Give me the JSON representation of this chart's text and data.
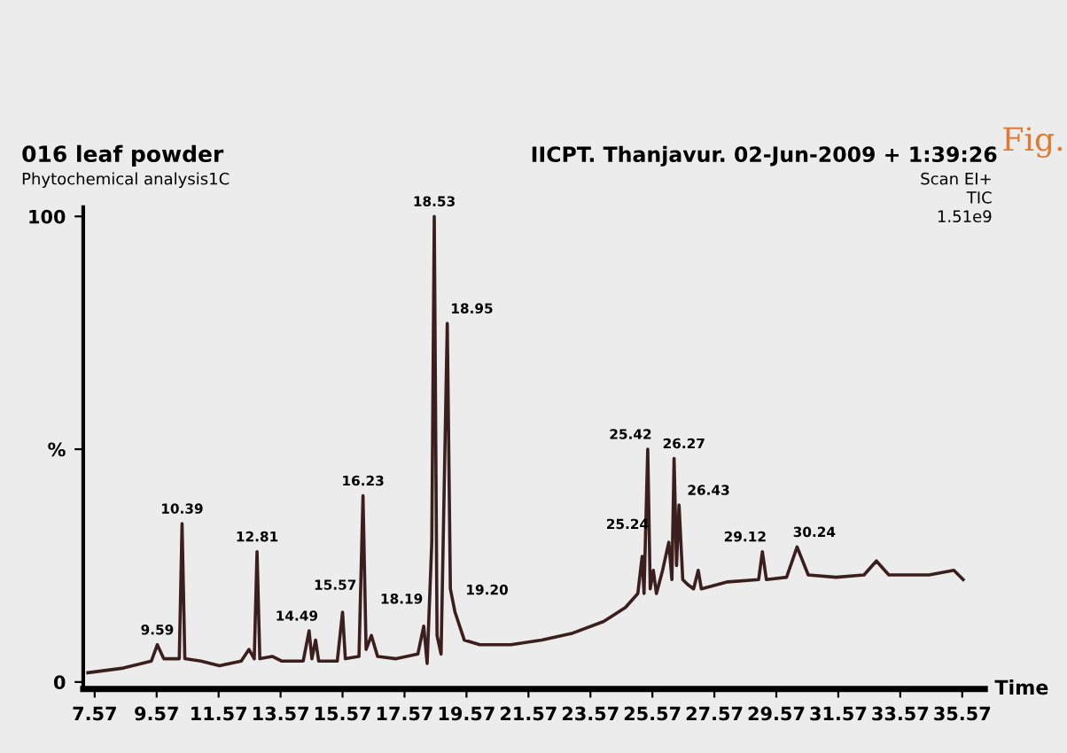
{
  "chart_data": {
    "type": "line",
    "title": "016 leaf powder",
    "subtitle": "Phytochemical analysis1C",
    "xlabel": "Time",
    "xlim": [
      7.2,
      36.3
    ],
    "ylim": [
      -1.5,
      102
    ],
    "xticks": [
      7.57,
      9.57,
      11.57,
      13.57,
      15.57,
      17.57,
      19.57,
      21.57,
      23.57,
      25.57,
      27.57,
      29.57,
      31.57,
      33.57,
      35.57
    ],
    "yticks": [
      0,
      {
        "value": 50,
        "label": "%"
      },
      100
    ],
    "grid": false,
    "legend": false,
    "marker": "none",
    "line_style": "solid",
    "series": [
      {
        "color": "#3b1e1e",
        "x": [
          7.35,
          8.5,
          9.4,
          9.59,
          9.8,
          10.3,
          10.39,
          10.48,
          11.0,
          11.6,
          12.3,
          12.55,
          12.72,
          12.81,
          12.9,
          13.3,
          13.6,
          14.3,
          14.49,
          14.58,
          14.7,
          14.8,
          15.4,
          15.57,
          15.66,
          16.1,
          16.23,
          16.33,
          16.5,
          16.7,
          17.3,
          18.0,
          18.19,
          18.3,
          18.45,
          18.53,
          18.62,
          18.75,
          18.95,
          19.05,
          19.2,
          19.5,
          20.0,
          21.0,
          22.0,
          23.0,
          24.0,
          24.7,
          25.1,
          25.24,
          25.3,
          25.42,
          25.5,
          25.6,
          25.7,
          25.9,
          26.1,
          26.2,
          26.27,
          26.35,
          26.43,
          26.55,
          26.7,
          26.9,
          27.05,
          27.15,
          28.0,
          29.0,
          29.12,
          29.25,
          29.9,
          30.24,
          30.6,
          31.5,
          32.4,
          32.8,
          33.2,
          34.5,
          35.3,
          35.6
        ],
        "values": [
          2,
          3,
          4.5,
          8,
          5,
          5,
          34,
          5,
          4.5,
          3.5,
          4.5,
          7,
          5,
          28,
          5,
          5.5,
          4.5,
          4.5,
          11,
          5,
          9,
          4.5,
          4.5,
          15,
          5,
          5.5,
          40,
          7,
          10,
          5.5,
          5,
          6,
          12,
          4,
          30,
          100,
          10,
          6,
          77,
          20,
          15,
          9,
          8,
          8,
          9,
          10.5,
          13,
          16,
          19,
          27,
          19,
          50,
          20,
          24,
          19,
          24,
          30,
          22,
          48,
          25,
          38,
          22,
          21,
          20,
          24,
          20,
          21.5,
          22,
          28,
          22,
          22.5,
          29,
          23,
          22.5,
          23,
          26,
          23,
          23,
          24,
          22
        ]
      }
    ],
    "annotations": [
      "IICPT. Thanjavur. 02-Jun-2009 + 1:39:26",
      "Scan EI+",
      "TIC",
      "1.51e9",
      "Fig.",
      {
        "text": "9.59",
        "x": 9.59,
        "y": 8
      },
      {
        "text": "10.39",
        "x": 10.39,
        "y": 34
      },
      {
        "text": "12.81",
        "x": 12.81,
        "y": 28
      },
      {
        "text": "14.49",
        "x": 14.49,
        "y": 11
      },
      {
        "text": "15.57",
        "x": 15.57,
        "y": 15
      },
      {
        "text": "16.23",
        "x": 16.23,
        "y": 40
      },
      {
        "text": "18.19",
        "x": 18.19,
        "y": 12
      },
      {
        "text": "18.53",
        "x": 18.53,
        "y": 100
      },
      {
        "text": "18.95",
        "x": 18.95,
        "y": 77
      },
      {
        "text": "19.20",
        "x": 19.2,
        "y": 15
      },
      {
        "text": "25.24",
        "x": 25.24,
        "y": 27
      },
      {
        "text": "25.42",
        "x": 25.42,
        "y": 50
      },
      {
        "text": "26.27",
        "x": 26.27,
        "y": 48
      },
      {
        "text": "26.43",
        "x": 26.43,
        "y": 38
      },
      {
        "text": "29.12",
        "x": 29.12,
        "y": 28
      },
      {
        "text": "30.24",
        "x": 30.24,
        "y": 29
      }
    ]
  }
}
